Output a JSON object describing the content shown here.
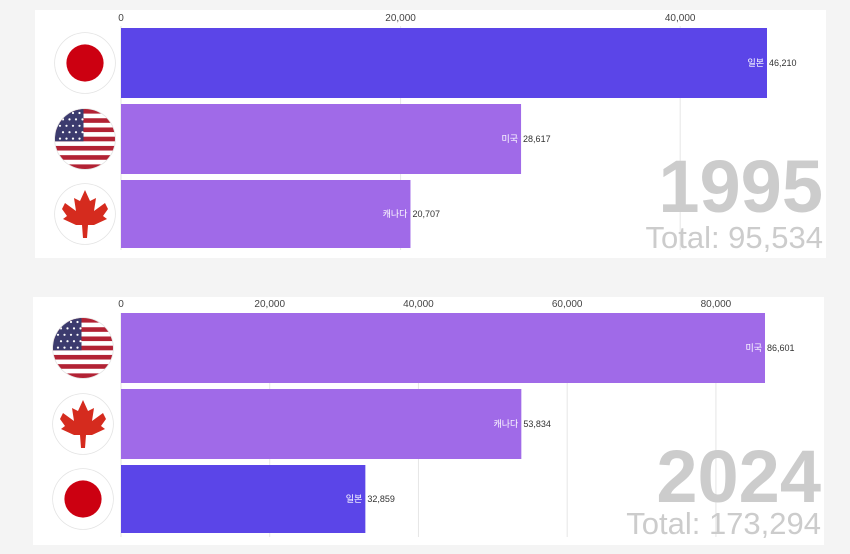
{
  "colors": {
    "japan": "#5b45e8",
    "usa": "#a06ae8",
    "canada": "#a06ae8",
    "grid": "#e6e6e6",
    "background": "#f4f4f4",
    "panel": "#ffffff",
    "watermark": "#cccccc"
  },
  "chart_data": [
    {
      "type": "bar",
      "orientation": "horizontal",
      "year_label": "1995",
      "total_label": "Total: 95,534",
      "xlim": [
        0,
        46210
      ],
      "ticks": [
        0,
        20000,
        40000
      ],
      "tick_labels": [
        "0",
        "20,000",
        "40,000"
      ],
      "grid": true,
      "bars": [
        {
          "flag": "japan-flag-icon",
          "country_label": "일본",
          "value": 46210,
          "value_label": "46,210",
          "color": "#5b45e8"
        },
        {
          "flag": "usa-flag-icon",
          "country_label": "미국",
          "value": 28617,
          "value_label": "28,617",
          "color": "#a06ae8"
        },
        {
          "flag": "canada-flag-icon",
          "country_label": "캐나다",
          "value": 20707,
          "value_label": "20,707",
          "color": "#a06ae8"
        }
      ]
    },
    {
      "type": "bar",
      "orientation": "horizontal",
      "year_label": "2024",
      "total_label": "Total: 173,294",
      "xlim": [
        0,
        86601
      ],
      "ticks": [
        0,
        20000,
        40000,
        60000,
        80000
      ],
      "tick_labels": [
        "0",
        "20,000",
        "40,000",
        "60,000",
        "80,000"
      ],
      "grid": true,
      "bars": [
        {
          "flag": "usa-flag-icon",
          "country_label": "미국",
          "value": 86601,
          "value_label": "86,601",
          "color": "#a06ae8"
        },
        {
          "flag": "canada-flag-icon",
          "country_label": "캐나다",
          "value": 53834,
          "value_label": "53,834",
          "color": "#a06ae8"
        },
        {
          "flag": "japan-flag-icon",
          "country_label": "일본",
          "value": 32859,
          "value_label": "32,859",
          "color": "#5b45e8"
        }
      ]
    }
  ]
}
